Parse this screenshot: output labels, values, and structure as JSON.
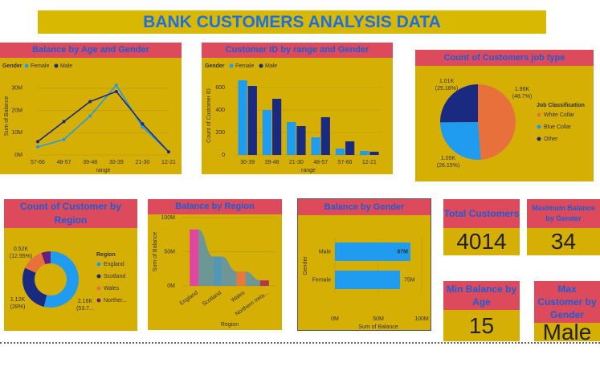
{
  "header": {
    "title": "BANK CUSTOMERS ANALYSIS DATA"
  },
  "chart_data": [
    {
      "type": "line",
      "title": "Balance by Age and Gender",
      "legend_title": "Gender",
      "x_label": "range",
      "y_label": "Sum of Balance",
      "categories": [
        "57-66",
        "48-57",
        "39-48",
        "30-39",
        "21-30",
        "12-21"
      ],
      "series": [
        {
          "name": "Female",
          "color": "#1f9cf0",
          "values": [
            3.6,
            7,
            17.5,
            31.4,
            12.6,
            1.4
          ]
        },
        {
          "name": "Male",
          "color": "#1a2a80",
          "values": [
            6,
            15,
            24,
            28.5,
            14,
            1.4
          ]
        }
      ],
      "ylim": [
        0,
        35
      ],
      "yticks": [
        {
          "value": 0,
          "label": "0M"
        },
        {
          "value": 10,
          "label": "10M"
        },
        {
          "value": 20,
          "label": "20M"
        },
        {
          "value": 30,
          "label": "30M"
        }
      ]
    },
    {
      "type": "bar",
      "title": "Customer ID by range and Gender",
      "legend_title": "Gender",
      "x_label": "range",
      "y_label": "Count of Customer ID",
      "categories": [
        "30-39",
        "39-48",
        "21-30",
        "48-57",
        "57-66",
        "12-21"
      ],
      "series": [
        {
          "name": "Female",
          "color": "#1f9cf0",
          "values": [
            664,
            400,
            293,
            157,
            57,
            36
          ]
        },
        {
          "name": "Male",
          "color": "#1a2a80",
          "values": [
            614,
            500,
            257,
            336,
            121,
            29
          ]
        }
      ],
      "ylim": [
        0,
        700
      ],
      "yticks": [
        0,
        200,
        400,
        600
      ]
    },
    {
      "type": "pie",
      "title": "Count of Customers job type",
      "legend_title": "Job Classification",
      "categories": [
        "White Collar",
        "Blue Collar",
        "Other"
      ],
      "values": [
        1960,
        1050,
        1010
      ],
      "value_labels": [
        "1.96K",
        "1.05K",
        "1.01K"
      ],
      "percent_labels": [
        "(48.7%)",
        "(26.15%)",
        "(25.16%)"
      ],
      "colors": [
        "#e8703a",
        "#1f9cf0",
        "#1a2a80"
      ]
    },
    {
      "type": "donut",
      "title": "Count of Customer by Region",
      "legend_title": "Region",
      "categories": [
        "England",
        "Scotland",
        "Wales",
        "Norther..."
      ],
      "values": [
        2160,
        1120,
        520,
        214
      ],
      "value_labels": [
        "2.16K",
        "1.12K",
        "0.52K",
        null
      ],
      "percent_labels": [
        "(53.7...",
        "(28%)",
        "(12.95%)",
        null
      ],
      "colors": [
        "#1f9cf0",
        "#1a2a80",
        "#e8703a",
        "#6b1f7c"
      ]
    },
    {
      "type": "ribbon",
      "title": "Balance by Region",
      "x_label": "Region",
      "y_label": "Sum of Balance",
      "categories": [
        "England",
        "Scotland",
        "Wales",
        "Northern Irela..."
      ],
      "values": [
        82.6,
        43,
        21,
        8
      ],
      "colors": [
        "#e0479e",
        "#5596b5",
        "#e8793a",
        "#b2364d"
      ],
      "ylim": [
        0,
        100
      ],
      "yticks": [
        {
          "value": 0,
          "label": "0M"
        },
        {
          "value": 50,
          "label": "50M"
        },
        {
          "value": 100,
          "label": "100M"
        }
      ]
    },
    {
      "type": "hbar",
      "title": "Balance by Gender",
      "x_label": "Sum of Balance",
      "y_label": "Gender",
      "categories": [
        "Male",
        "Female"
      ],
      "values": [
        87,
        75
      ],
      "value_labels": [
        "87M",
        "75M"
      ],
      "color": "#1f9cf0",
      "xlim": [
        0,
        100
      ],
      "xticks": [
        {
          "value": 0,
          "label": "0M"
        },
        {
          "value": 50,
          "label": "50M"
        },
        {
          "value": 100,
          "label": "100M"
        }
      ]
    }
  ],
  "cards": [
    {
      "title": "Total Customers",
      "value": 4014
    },
    {
      "title": "Maximum Balance by Gender",
      "value": 34
    },
    {
      "title": "Min Balance by Age",
      "value": 15
    },
    {
      "title": "Max Customer by Gender",
      "value": "Male"
    }
  ]
}
